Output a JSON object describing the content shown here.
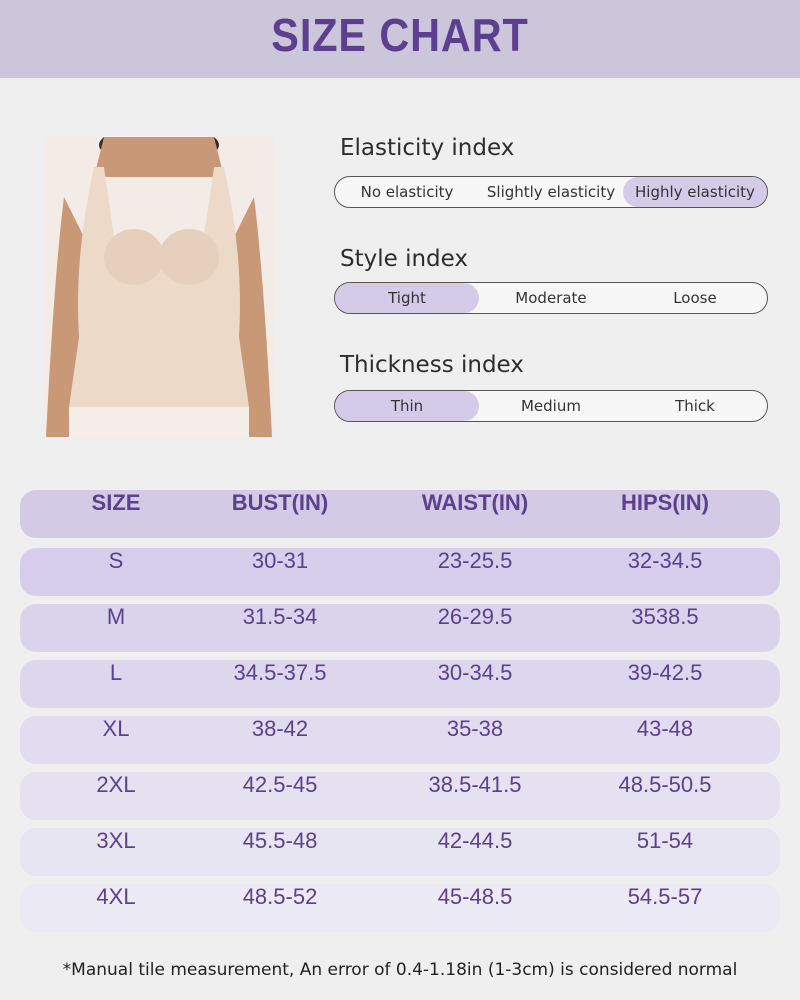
{
  "header": {
    "title": "SIZE CHART"
  },
  "indices": [
    {
      "label": "Elasticity index",
      "options": [
        "No elasticity",
        "Slightly elasticity",
        "Highly elasticity"
      ],
      "selected": 2
    },
    {
      "label": "Style index",
      "options": [
        "Tight",
        "Moderate",
        "Loose"
      ],
      "selected": 0
    },
    {
      "label": "Thickness index",
      "options": [
        "Thin",
        "Medium",
        "Thick"
      ],
      "selected": 0
    }
  ],
  "table": {
    "columns": [
      "SIZE",
      "BUST(IN)",
      "WAIST(IN)",
      "HIPS(IN)"
    ],
    "rows": [
      [
        "S",
        "30-31",
        "23-25.5",
        "32-34.5"
      ],
      [
        "M",
        "31.5-34",
        "26-29.5",
        "3538.5"
      ],
      [
        "L",
        "34.5-37.5",
        "30-34.5",
        "39-42.5"
      ],
      [
        "XL",
        "38-42",
        "35-38",
        "43-48"
      ],
      [
        "2XL",
        "42.5-45",
        "38.5-41.5",
        "48.5-50.5"
      ],
      [
        "3XL",
        "45.5-48",
        "42-44.5",
        "51-54"
      ],
      [
        "4XL",
        "48.5-52",
        "45-48.5",
        "54.5-57"
      ]
    ]
  },
  "footnote": "*Manual tile measurement, An error of 0.4-1.18in (1-3cm) is considered normal"
}
